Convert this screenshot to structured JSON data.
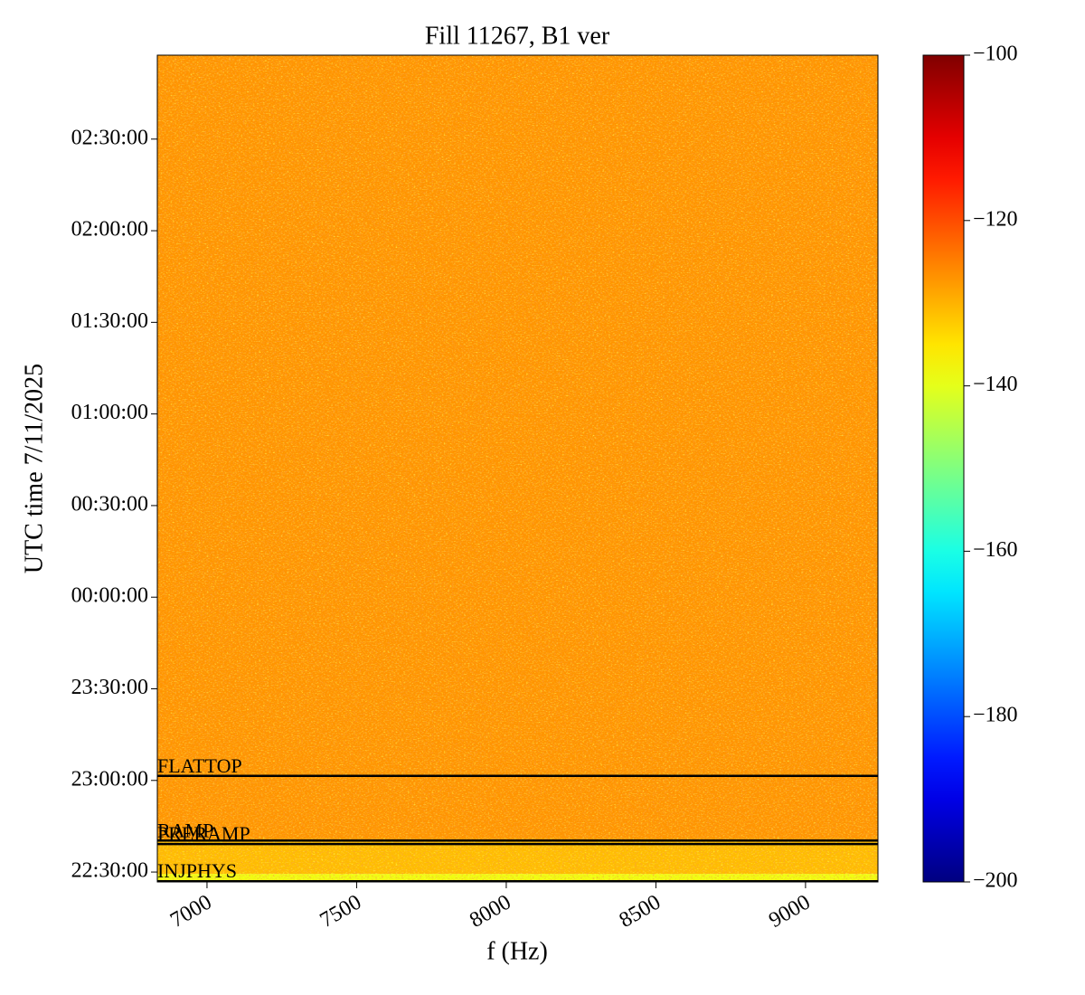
{
  "chart_data": {
    "type": "spectrogram",
    "title": "Fill 11267, B1 ver",
    "xlabel": "f (Hz)",
    "ylabel": "UTC time 7/11/2025",
    "xlim": [
      6834,
      9242
    ],
    "xticks": [
      7000,
      7500,
      8000,
      8500,
      9000
    ],
    "ylim": [
      -1.554,
      2.958
    ],
    "yticks": [
      {
        "value": -1.5,
        "label": "22:30:00"
      },
      {
        "value": -1.0,
        "label": "23:00:00"
      },
      {
        "value": -0.5,
        "label": "23:30:00"
      },
      {
        "value": 0.0,
        "label": "00:00:00"
      },
      {
        "value": 0.5,
        "label": "00:30:00"
      },
      {
        "value": 1.0,
        "label": "01:00:00"
      },
      {
        "value": 1.5,
        "label": "01:30:00"
      },
      {
        "value": 2.0,
        "label": "02:00:00"
      },
      {
        "value": 2.5,
        "label": "02:30:00"
      }
    ],
    "colormap": "jet",
    "clim": [
      -200,
      -100
    ],
    "cticks": [
      {
        "value": -200,
        "label": "−200"
      },
      {
        "value": -180,
        "label": "−180"
      },
      {
        "value": -160,
        "label": "−160"
      },
      {
        "value": -140,
        "label": "−140"
      },
      {
        "value": -120,
        "label": "−120"
      },
      {
        "value": -100,
        "label": "−100"
      }
    ],
    "levels": [
      {
        "y": [
          -1.554,
          -1.51
        ],
        "value": -139
      },
      {
        "y": [
          -1.51,
          -1.33
        ],
        "value": -131
      },
      {
        "y": [
          -1.33,
          2.958
        ],
        "value": -127
      }
    ],
    "annotations": [
      {
        "label": "FLATTOP",
        "y": -0.975
      },
      {
        "label": "RAMP",
        "y": -1.328
      },
      {
        "label": "PRERAMP",
        "y": -1.347
      },
      {
        "label": "INJPHYS",
        "y": -1.55
      }
    ],
    "line_color": "#000000"
  }
}
